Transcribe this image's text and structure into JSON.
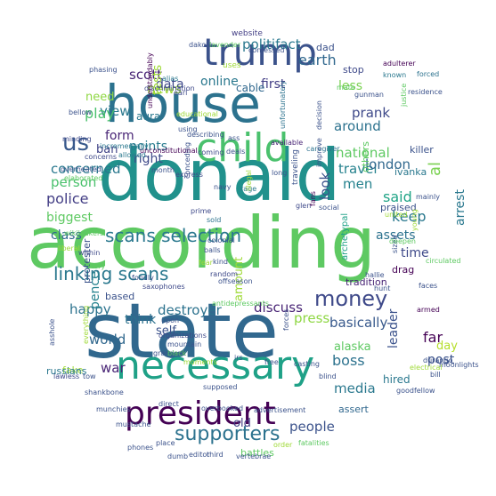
{
  "words": [
    {
      "text": "according",
      "color": "#5ec962"
    },
    {
      "text": "state",
      "color": "#31688e"
    },
    {
      "text": "donald",
      "color": "#21918c"
    },
    {
      "text": "house",
      "color": "#2c728e"
    },
    {
      "text": "necessary",
      "color": "#1fa187"
    },
    {
      "text": "president",
      "color": "#440154"
    },
    {
      "text": "child",
      "color": "#4ac16d"
    },
    {
      "text": "trump",
      "color": "#3b528b"
    },
    {
      "text": "money",
      "color": "#3e4989"
    },
    {
      "text": "supporters",
      "color": "#2c728e"
    },
    {
      "text": "us",
      "color": "#38598c"
    },
    {
      "text": "linking scans",
      "color": "#2a788e"
    },
    {
      "text": "scans selection",
      "color": "#2a788e"
    },
    {
      "text": "al",
      "color": "#7ad151"
    },
    {
      "text": "earth",
      "color": "#31688e"
    },
    {
      "text": "politifact",
      "color": "#2a788e"
    },
    {
      "text": "news",
      "color": "#a0da39"
    },
    {
      "text": "scott",
      "color": "#482475"
    },
    {
      "text": "prank",
      "color": "#3e4989"
    },
    {
      "text": "around",
      "color": "#2c728e"
    },
    {
      "text": "national",
      "color": "#5ec962"
    },
    {
      "text": "travel",
      "color": "#26828e"
    },
    {
      "text": "men",
      "color": "#26828e"
    },
    {
      "text": "less",
      "color": "#7ad151"
    },
    {
      "text": "online",
      "color": "#2a788e"
    },
    {
      "text": "data",
      "color": "#3e4989"
    },
    {
      "text": "first",
      "color": "#433e85"
    },
    {
      "text": "cable",
      "color": "#31688e"
    },
    {
      "text": "view",
      "color": "#2a788e"
    },
    {
      "text": "need",
      "color": "#8fd744"
    },
    {
      "text": "play",
      "color": "#4ac16d"
    },
    {
      "text": "form",
      "color": "#482475"
    },
    {
      "text": "ban",
      "color": "#414487"
    },
    {
      "text": "points",
      "color": "#287c8e"
    },
    {
      "text": "right",
      "color": "#3e4989"
    },
    {
      "text": "concerned",
      "color": "#2a788e"
    },
    {
      "text": "london",
      "color": "#31688e"
    },
    {
      "text": "said",
      "color": "#20a486"
    },
    {
      "text": "keep",
      "color": "#2a788e"
    },
    {
      "text": "look",
      "color": "#3b528b"
    },
    {
      "text": "person",
      "color": "#4ac16d"
    },
    {
      "text": "police",
      "color": "#433e85"
    },
    {
      "text": "biggest",
      "color": "#5ec962"
    },
    {
      "text": "class",
      "color": "#31688e"
    },
    {
      "text": "assets",
      "color": "#2c728e"
    },
    {
      "text": "time",
      "color": "#3e4989"
    },
    {
      "text": "arrest",
      "color": "#2a788e"
    },
    {
      "text": "happy",
      "color": "#2c728e"
    },
    {
      "text": "destroyer",
      "color": "#2c728e"
    },
    {
      "text": "think",
      "color": "#2c728e"
    },
    {
      "text": "discuss",
      "color": "#482475"
    },
    {
      "text": "press",
      "color": "#8fd744"
    },
    {
      "text": "self",
      "color": "#3b528b"
    },
    {
      "text": "amount",
      "color": "#a0da39"
    },
    {
      "text": "basically",
      "color": "#38598c"
    },
    {
      "text": "alaska",
      "color": "#5ec962"
    },
    {
      "text": "boss",
      "color": "#2c728e"
    },
    {
      "text": "far",
      "color": "#440154"
    },
    {
      "text": "day",
      "color": "#b5de2b"
    },
    {
      "text": "post",
      "color": "#3b528b"
    },
    {
      "text": "hired",
      "color": "#2a788e"
    },
    {
      "text": "leader",
      "color": "#3b528b"
    },
    {
      "text": "pence",
      "color": "#26828e"
    },
    {
      "text": "world",
      "color": "#31688e"
    },
    {
      "text": "war",
      "color": "#482475"
    },
    {
      "text": "media",
      "color": "#2a788e"
    },
    {
      "text": "old",
      "color": "#433e85"
    },
    {
      "text": "people",
      "color": "#3b528b"
    },
    {
      "text": "tests",
      "color": "#a0da39"
    },
    {
      "text": "aura",
      "color": "#2a788e"
    },
    {
      "text": "dad",
      "color": "#3b528b"
    },
    {
      "text": "stop",
      "color": "#3e4989"
    },
    {
      "text": "ivanka",
      "color": "#2a788e"
    },
    {
      "text": "praised",
      "color": "#3b528b"
    },
    {
      "text": "others",
      "color": "#5ec962"
    },
    {
      "text": "archetypal",
      "color": "#1fa187"
    },
    {
      "text": "tradition",
      "color": "#482475"
    },
    {
      "text": "based",
      "color": "#3b528b"
    },
    {
      "text": "fake",
      "color": "#a0da39"
    },
    {
      "text": "russians",
      "color": "#2a788e"
    },
    {
      "text": "protester",
      "color": "#3b528b"
    },
    {
      "text": "assert",
      "color": "#31688e"
    },
    {
      "text": "battles",
      "color": "#5ec962"
    },
    {
      "text": "drag",
      "color": "#440154"
    },
    {
      "text": "killer",
      "color": "#3b528b"
    },
    {
      "text": "website",
      "color": "#433e85"
    },
    {
      "text": "dakota",
      "color": "#3b528b"
    },
    {
      "text": "lavender",
      "color": "#5ec962"
    },
    {
      "text": "confessed",
      "color": "#3b528b"
    },
    {
      "text": "adulterer",
      "color": "#440154"
    },
    {
      "text": "known",
      "color": "#2a788e"
    },
    {
      "text": "forced",
      "color": "#2c728e"
    },
    {
      "text": "mate",
      "color": "#5ec962"
    },
    {
      "text": "residence",
      "color": "#3b528b"
    },
    {
      "text": "uses",
      "color": "#a0da39"
    },
    {
      "text": "phasing",
      "color": "#3b528b"
    },
    {
      "text": "alias",
      "color": "#2a788e"
    },
    {
      "text": "discrimination",
      "color": "#3e4989"
    },
    {
      "text": "earl",
      "color": "#3e4989"
    },
    {
      "text": "gunman",
      "color": "#3b528b"
    },
    {
      "text": "justice",
      "color": "#5ec962"
    },
    {
      "text": "bellow",
      "color": "#3b528b"
    },
    {
      "text": "understandably",
      "color": "#440154"
    },
    {
      "text": "educational",
      "color": "#a0da39"
    },
    {
      "text": "using",
      "color": "#3b528b"
    },
    {
      "text": "unfortunately",
      "color": "#2c728e"
    },
    {
      "text": "decision",
      "color": "#3b528b"
    },
    {
      "text": "minding",
      "color": "#3e4989"
    },
    {
      "text": "incrementally",
      "color": "#2a788e"
    },
    {
      "text": "describing",
      "color": "#3b528b"
    },
    {
      "text": "available",
      "color": "#482475"
    },
    {
      "text": "allowed",
      "color": "#2a788e"
    },
    {
      "text": "unconstitutional",
      "color": "#440154"
    },
    {
      "text": "coming",
      "color": "#3e4989"
    },
    {
      "text": "deals",
      "color": "#3b528b"
    },
    {
      "text": "caregiver",
      "color": "#2c728e"
    },
    {
      "text": "concerns",
      "color": "#3e4989"
    },
    {
      "text": "overheated",
      "color": "#3b528b"
    },
    {
      "text": "elaborated",
      "color": "#5ec962"
    },
    {
      "text": "month",
      "color": "#3b528b"
    },
    {
      "text": "express",
      "color": "#3e4989"
    },
    {
      "text": "conceding",
      "color": "#3b528b"
    },
    {
      "text": "navy",
      "color": "#3b528b"
    },
    {
      "text": "rage",
      "color": "#2a788e"
    },
    {
      "text": "illegal",
      "color": "#a0da39"
    },
    {
      "text": "sold",
      "color": "#2c728e"
    },
    {
      "text": "improve",
      "color": "#3b528b"
    },
    {
      "text": "prime",
      "color": "#3e4989"
    },
    {
      "text": "glen",
      "color": "#3e4989"
    },
    {
      "text": "social",
      "color": "#3b528b"
    },
    {
      "text": "united",
      "color": "#a0da39"
    },
    {
      "text": "mainly",
      "color": "#3b528b"
    },
    {
      "text": "traveling",
      "color": "#3b528b"
    },
    {
      "text": "fans",
      "color": "#440154"
    },
    {
      "text": "wikileakers",
      "color": "#5ec962"
    },
    {
      "text": "liberal",
      "color": "#a0da39"
    },
    {
      "text": "within",
      "color": "#3e4989"
    },
    {
      "text": "story",
      "color": "#5ec962"
    },
    {
      "text": "colonial",
      "color": "#3b528b"
    },
    {
      "text": "balls",
      "color": "#3b528b"
    },
    {
      "text": "kind",
      "color": "#3b528b"
    },
    {
      "text": "random",
      "color": "#3e4989"
    },
    {
      "text": "offseason",
      "color": "#3b528b"
    },
    {
      "text": "fondly",
      "color": "#3b528b"
    },
    {
      "text": "sized",
      "color": "#3b528b"
    },
    {
      "text": "young",
      "color": "#a0da39"
    },
    {
      "text": "deepen",
      "color": "#5ec962"
    },
    {
      "text": "circulated",
      "color": "#5ec962"
    },
    {
      "text": "hallie",
      "color": "#3b528b"
    },
    {
      "text": "hunt",
      "color": "#3b528b"
    },
    {
      "text": "faces",
      "color": "#3b528b"
    },
    {
      "text": "antidepressants",
      "color": "#5ec962"
    },
    {
      "text": "armed",
      "color": "#440154"
    },
    {
      "text": "asshole",
      "color": "#3b528b"
    },
    {
      "text": "upon",
      "color": "#3b528b"
    },
    {
      "text": "organizations",
      "color": "#3e4989"
    },
    {
      "text": "mountain",
      "color": "#3b528b"
    },
    {
      "text": "grandma",
      "color": "#3b528b"
    },
    {
      "text": "black",
      "color": "#5ec962"
    },
    {
      "text": "durango",
      "color": "#3b528b"
    },
    {
      "text": "moonlights",
      "color": "#3b528b"
    },
    {
      "text": "electrical",
      "color": "#a0da39"
    },
    {
      "text": "bill",
      "color": "#3b528b"
    },
    {
      "text": "lawless",
      "color": "#3e4989"
    },
    {
      "text": "tow",
      "color": "#3b528b"
    },
    {
      "text": "shankbone",
      "color": "#3b528b"
    },
    {
      "text": "supposed",
      "color": "#3b528b"
    },
    {
      "text": "moments",
      "color": "#a0da39"
    },
    {
      "text": "irs",
      "color": "#3b528b"
    },
    {
      "text": "free",
      "color": "#3b528b"
    },
    {
      "text": "blind",
      "color": "#3b528b"
    },
    {
      "text": "goodfellow",
      "color": "#3b528b"
    },
    {
      "text": "direct",
      "color": "#3b528b"
    },
    {
      "text": "overbooked",
      "color": "#3b528b"
    },
    {
      "text": "advertisement",
      "color": "#3b528b"
    },
    {
      "text": "munchies",
      "color": "#3b528b"
    },
    {
      "text": "mustache",
      "color": "#3b528b"
    },
    {
      "text": "phones",
      "color": "#3b528b"
    },
    {
      "text": "dumb",
      "color": "#3b528b"
    },
    {
      "text": "editor",
      "color": "#3b528b"
    },
    {
      "text": "third",
      "color": "#3b528b"
    },
    {
      "text": "order",
      "color": "#a0da39"
    },
    {
      "text": "vertebrae",
      "color": "#3b528b"
    },
    {
      "text": "fatalities",
      "color": "#5ec962"
    },
    {
      "text": "place",
      "color": "#3b528b"
    },
    {
      "text": "casting",
      "color": "#3b528b"
    },
    {
      "text": "forces",
      "color": "#3b528b"
    },
    {
      "text": "everything",
      "color": "#a0da39"
    },
    {
      "text": "saxophones",
      "color": "#3e4989"
    },
    {
      "text": "long",
      "color": "#3b528b"
    },
    {
      "text": "ass",
      "color": "#3b528b"
    },
    {
      "text": "fear",
      "color": "#a0da39"
    },
    {
      "text": "lung",
      "color": "#3b528b"
    }
  ]
}
